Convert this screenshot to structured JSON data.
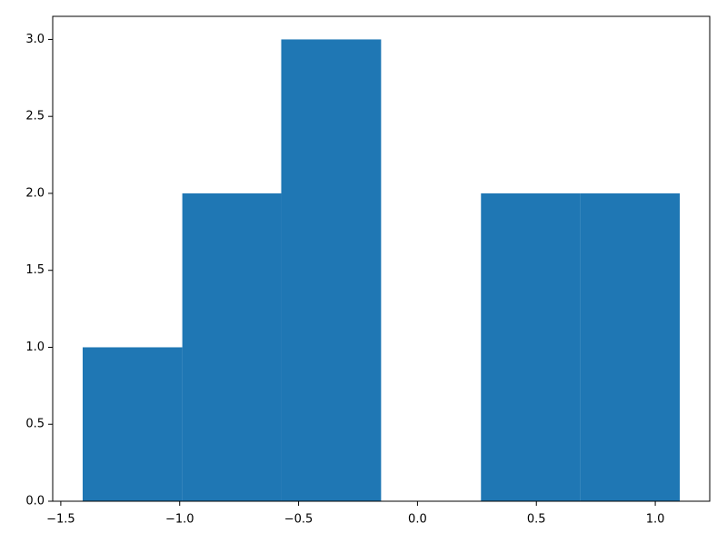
{
  "chart_data": {
    "type": "histogram",
    "bins": [
      -1.408,
      -0.989,
      -0.573,
      -0.153,
      0.267,
      0.683,
      1.103
    ],
    "values": [
      1,
      2,
      3,
      0,
      2,
      2
    ],
    "color": "#1f77b4",
    "xlim": [
      -1.534,
      1.229
    ],
    "ylim": [
      0,
      3.15
    ],
    "xticks": [
      {
        "value": -1.5,
        "label": "−1.5"
      },
      {
        "value": -1.0,
        "label": "−1.0"
      },
      {
        "value": -0.5,
        "label": "−0.5"
      },
      {
        "value": 0.0,
        "label": "0.0"
      },
      0.5,
      {
        "value": 1.0,
        "label": "1.0"
      }
    ],
    "yticks": [
      {
        "value": 0.0,
        "label": "0.0"
      },
      0.5,
      {
        "value": 1.0,
        "label": "1.0"
      },
      1.5,
      {
        "value": 2.0,
        "label": "2.0"
      },
      2.5,
      {
        "value": 3.0,
        "label": "3.0"
      }
    ],
    "grid": false
  }
}
